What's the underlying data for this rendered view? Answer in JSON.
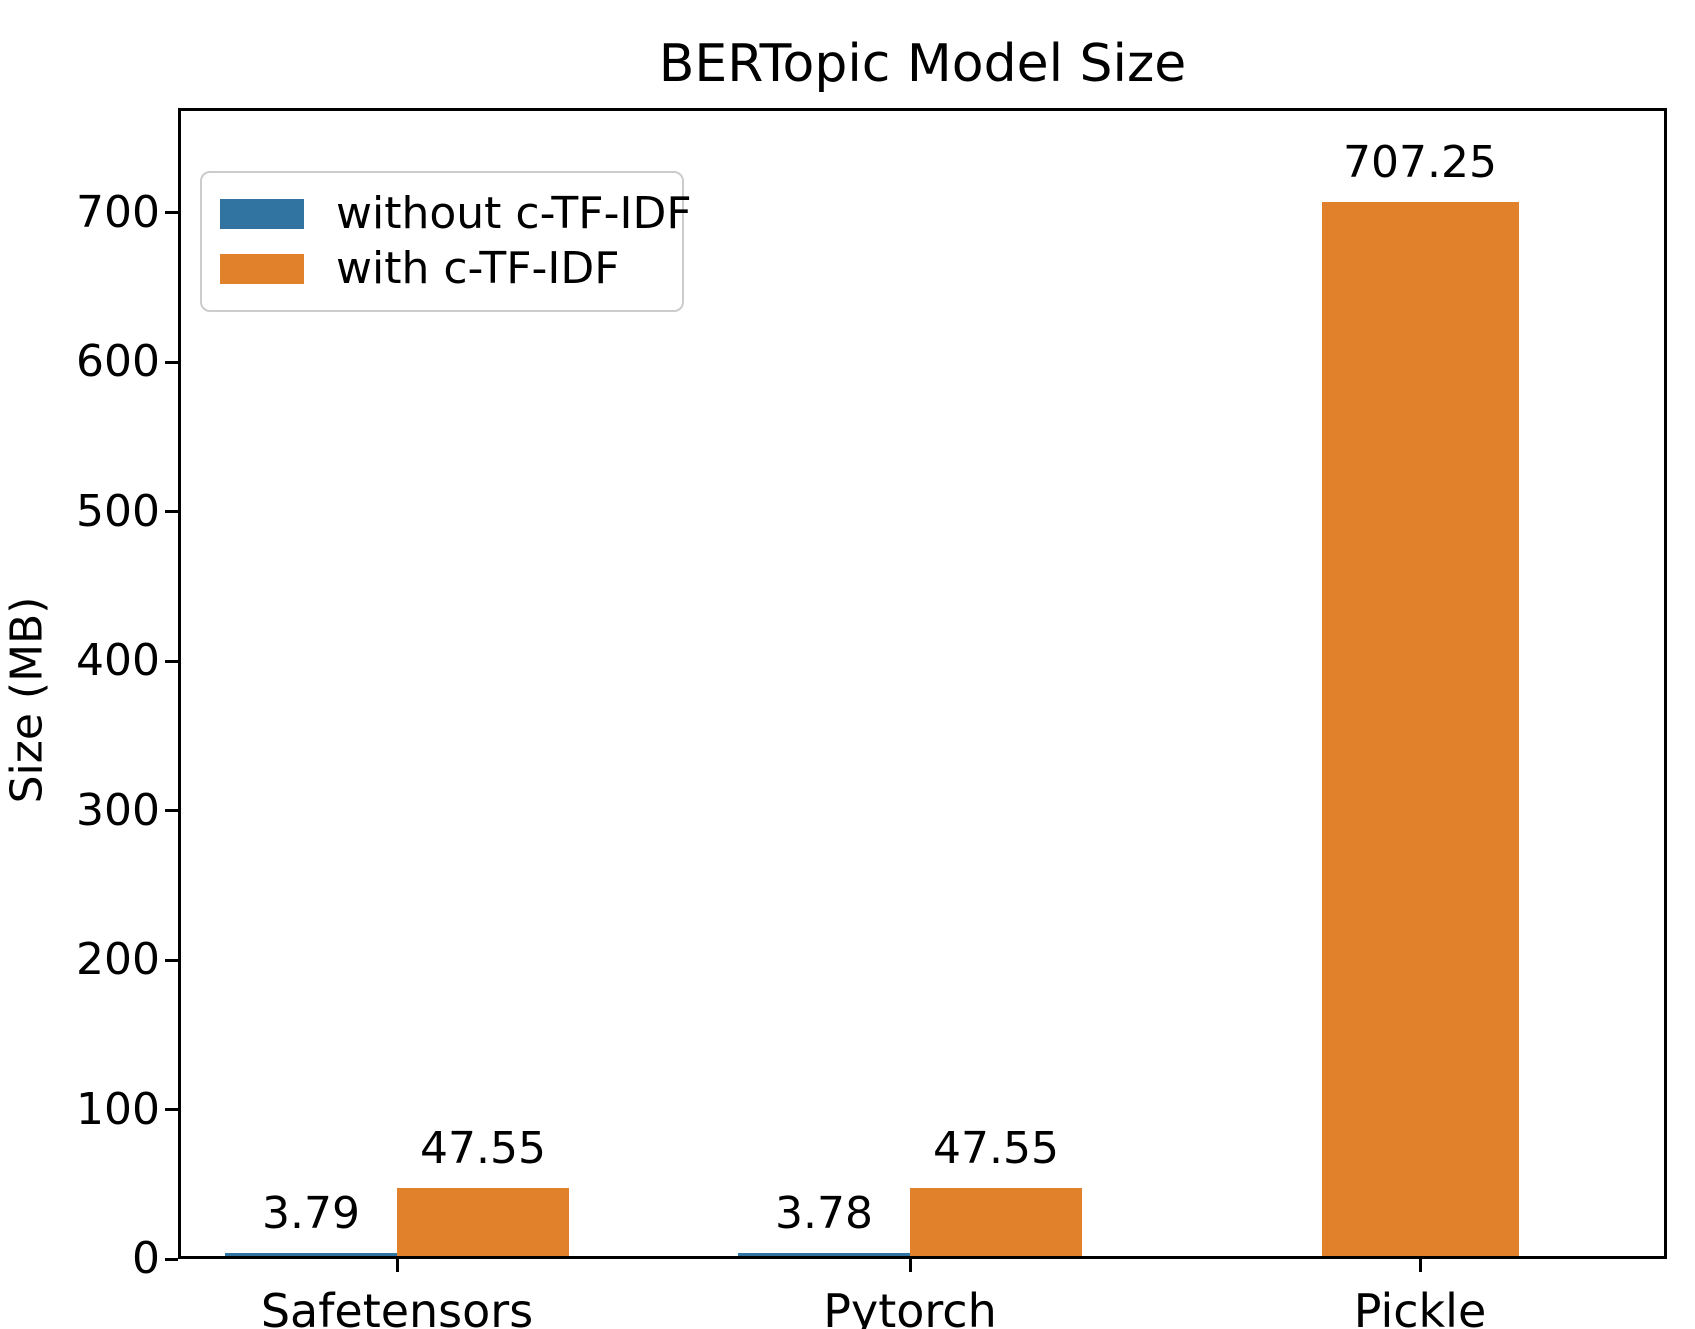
{
  "chart_data": {
    "type": "bar",
    "title": "BERTopic Model Size",
    "xlabel": "",
    "ylabel": "Size (MB)",
    "categories": [
      "Safetensors",
      "Pytorch",
      "Pickle"
    ],
    "series": [
      {
        "name": "without c-TF-IDF",
        "color": "#3274a1",
        "values": [
          3.79,
          3.78,
          null
        ],
        "value_labels": [
          "3.79",
          "3.78",
          null
        ]
      },
      {
        "name": "with c-TF-IDF",
        "color": "#e1812c",
        "values": [
          47.55,
          47.55,
          707.25
        ],
        "value_labels": [
          "47.55",
          "47.55",
          "707.25"
        ]
      }
    ],
    "ylim": [
      0,
      770
    ],
    "yticks": [
      0,
      100,
      200,
      300,
      400,
      500,
      600,
      700
    ],
    "ytick_labels": [
      "0",
      "100",
      "200",
      "300",
      "400",
      "500",
      "600",
      "700"
    ],
    "grid": false,
    "legend_position": "upper-left",
    "bar_value_labels": true,
    "colors": {
      "spine": "#000000",
      "text": "#000000",
      "legend_border": "#cccccc",
      "background": "#ffffff"
    }
  }
}
